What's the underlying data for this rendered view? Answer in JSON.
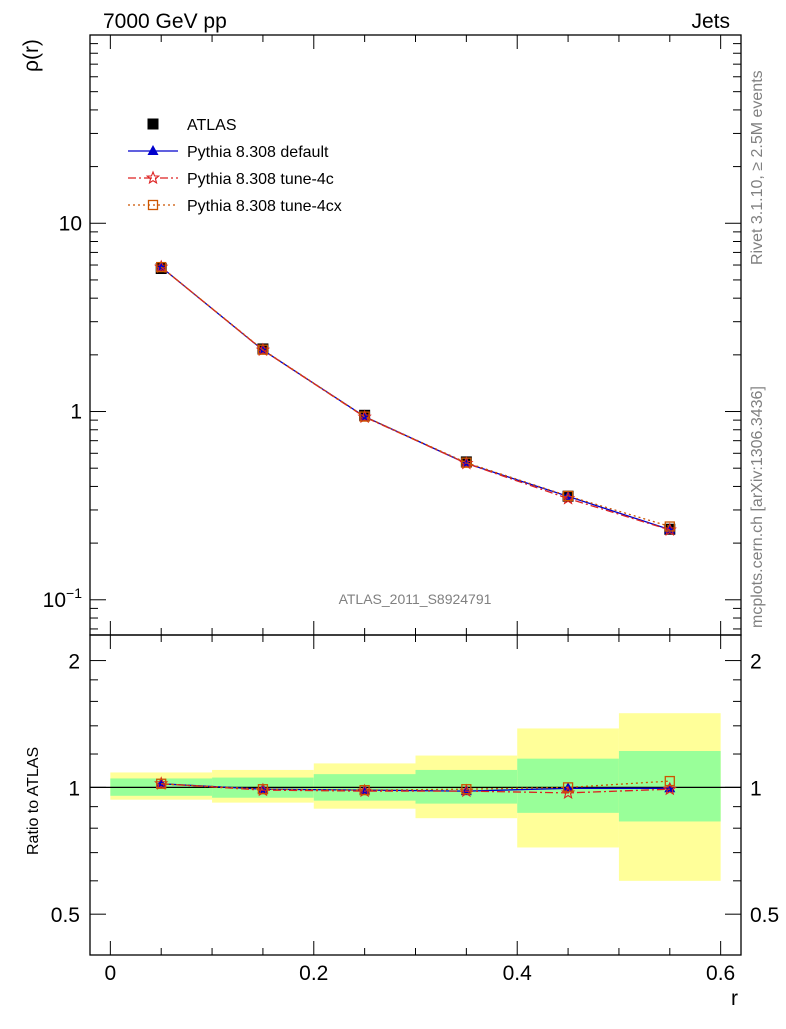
{
  "header": {
    "left": "7000 GeV pp",
    "right": "Jets"
  },
  "side_labels": {
    "rivet": "Rivet 3.1.10, ≥ 2.5M events",
    "source": "mcplots.cern.ch [arXiv:1306.3436]"
  },
  "watermark": "ATLAS_2011_S8924791",
  "chart_data": {
    "type": "line",
    "ylabel": "ρ(r)",
    "xlabel": "r",
    "ratio_ylabel": "Ratio to ATLAS",
    "x_ticks": [
      "0",
      "0.2",
      "0.4",
      "0.6"
    ],
    "main_y_ticks": [
      "10−1",
      "1",
      "10"
    ],
    "ratio_y_ticks": [
      "0.5",
      "1",
      "2"
    ],
    "xlim": [
      -0.02,
      0.62
    ],
    "main_ylim": [
      0.065,
      100
    ],
    "main_yscale": "log",
    "ratio_ylim": [
      0.4,
      2.3
    ],
    "ratio_yscale": "log",
    "x": [
      0.05,
      0.15,
      0.25,
      0.35,
      0.45,
      0.55
    ],
    "x_edges": [
      0.0,
      0.1,
      0.2,
      0.3,
      0.4,
      0.5,
      0.6
    ],
    "series": [
      {
        "name": "ATLAS",
        "values": [
          5.75,
          2.15,
          0.955,
          0.54,
          0.355,
          0.237
        ],
        "color": "#000000",
        "marker": "square"
      },
      {
        "name": "Pythia 8.308 default",
        "values": [
          5.85,
          2.12,
          0.94,
          0.53,
          0.354,
          0.236
        ],
        "color": "#0000cc",
        "marker": "triangle"
      },
      {
        "name": "Pythia 8.308 tune-4c",
        "values": [
          5.85,
          2.12,
          0.935,
          0.53,
          0.345,
          0.235
        ],
        "color": "#dd2222",
        "marker": "star"
      },
      {
        "name": "Pythia 8.308 tune-4cx",
        "values": [
          5.85,
          2.13,
          0.94,
          0.535,
          0.356,
          0.245
        ],
        "color": "#cc5500",
        "marker": "open-square"
      }
    ],
    "ratio_series": [
      {
        "name": "Pythia 8.308 default",
        "values": [
          1.02,
          0.99,
          0.985,
          0.98,
          0.995,
          0.995
        ]
      },
      {
        "name": "Pythia 8.308 tune-4c",
        "values": [
          1.02,
          0.985,
          0.98,
          0.98,
          0.97,
          0.99
        ]
      },
      {
        "name": "Pythia 8.308 tune-4cx",
        "values": [
          1.02,
          0.99,
          0.985,
          0.99,
          1.0,
          1.035
        ]
      }
    ],
    "uncertainty_bands": {
      "green_lo": [
        0.955,
        0.945,
        0.93,
        0.915,
        0.87,
        0.83
      ],
      "green_hi": [
        1.05,
        1.055,
        1.075,
        1.1,
        1.17,
        1.22
      ],
      "yellow_lo": [
        0.935,
        0.92,
        0.89,
        0.845,
        0.72,
        0.6
      ],
      "yellow_hi": [
        1.085,
        1.1,
        1.14,
        1.19,
        1.38,
        1.5
      ],
      "green_color": "#99ff99",
      "yellow_color": "#ffff99"
    }
  }
}
